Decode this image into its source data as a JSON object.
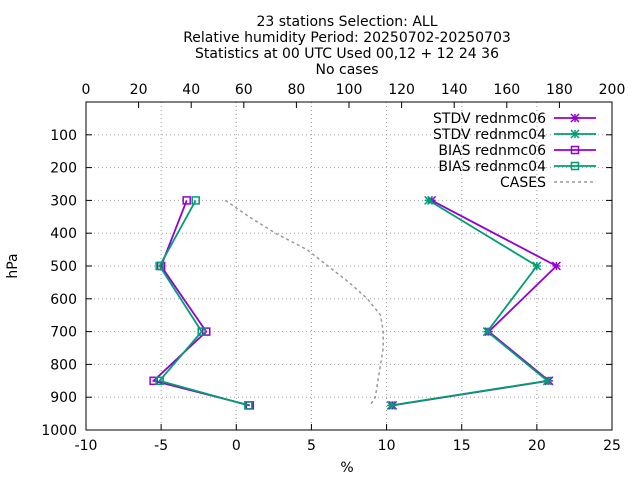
{
  "chart_data": {
    "type": "line",
    "title_lines": [
      "23 stations Selection: ALL",
      "Relative humidity  Period: 20250702-20250703",
      "Statistics at 00 UTC  Used 00,12 + 12 24 36",
      "No cases"
    ],
    "xlabel": "%",
    "ylabel": "hPa",
    "xlim": [
      -10,
      25
    ],
    "xticks": [
      "-10",
      "-5",
      "0",
      "5",
      "10",
      "15",
      "20",
      "25"
    ],
    "x2lim": [
      0,
      200
    ],
    "x2ticks": [
      "0",
      "20",
      "40",
      "60",
      "80",
      "100",
      "120",
      "140",
      "160",
      "180",
      "200"
    ],
    "ylim": [
      1000,
      0
    ],
    "yticks": [
      "100",
      "200",
      "300",
      "400",
      "500",
      "600",
      "700",
      "800",
      "900",
      "1000"
    ],
    "grid": true,
    "legend_position": "top-right",
    "colors": {
      "rednmc06": "#9400d3",
      "rednmc04": "#009e73",
      "cases": "#999999"
    },
    "series": [
      {
        "name": "STDV rednmc06",
        "color": "#9400d3",
        "marker": "star",
        "x": [
          13.0,
          21.3,
          16.8,
          20.8,
          10.4
        ],
        "y": [
          300,
          500,
          700,
          850,
          925
        ]
      },
      {
        "name": "STDV rednmc04",
        "color": "#009e73",
        "marker": "star",
        "x": [
          12.8,
          20.0,
          16.7,
          20.7,
          10.3
        ],
        "y": [
          300,
          500,
          700,
          850,
          925
        ]
      },
      {
        "name": "BIAS rednmc06",
        "color": "#9400d3",
        "marker": "square",
        "x": [
          -3.3,
          -5.0,
          -2.0,
          -5.5,
          0.9
        ],
        "y": [
          300,
          500,
          700,
          850,
          925
        ]
      },
      {
        "name": "BIAS rednmc04",
        "color": "#009e73",
        "marker": "square",
        "x": [
          -2.7,
          -5.1,
          -2.3,
          -5.1,
          0.8
        ],
        "y": [
          300,
          500,
          700,
          850,
          925
        ]
      },
      {
        "name": "CASES",
        "color": "#999999",
        "marker": "none",
        "dashed": true,
        "axis": "x2",
        "x": [
          53,
          62,
          72,
          84,
          92,
          100,
          107,
          112,
          113,
          113,
          112,
          111,
          110,
          108
        ],
        "y": [
          300,
          350,
          400,
          450,
          500,
          550,
          600,
          650,
          700,
          750,
          800,
          850,
          900,
          925
        ]
      }
    ]
  }
}
